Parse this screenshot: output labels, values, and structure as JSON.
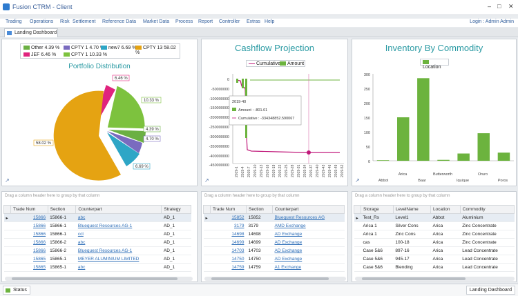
{
  "window": {
    "title": "Fusion CTRM - Client"
  },
  "menu": {
    "items": [
      "Trading",
      "Operations",
      "Risk",
      "Settlement",
      "Reference Data",
      "Market Data",
      "Process",
      "Report",
      "Controller",
      "Extras",
      "Help"
    ],
    "login": "Login : Admin Admin"
  },
  "tabs": {
    "active": "Landing Dashboard"
  },
  "portfolio": {
    "title": "Portfolio Distribution",
    "legend": [
      "Other 4.39 %",
      "CPTY 1 4.70 %",
      "new7 6.69 %",
      "CPTY 13 58.02 %",
      "JEF 6.46 %",
      "CPTY 1 10.33 %"
    ],
    "labels": [
      "6.46 %",
      "10.33 %",
      "4.39 %",
      "4.70 %",
      "6.69 %",
      "58.02 %"
    ]
  },
  "cashflow": {
    "title": "Cashflow Projection",
    "legend": [
      "Cumulative",
      "Amount"
    ],
    "y_ticks": [
      "0",
      "-50000000",
      "-100000000",
      "-150000000",
      "-200000000",
      "-250000000",
      "-300000000",
      "-350000000",
      "-400000000",
      "-450000000"
    ],
    "x_ticks": [
      "2019-1",
      "2019-4",
      "2019-7",
      "2019-10",
      "2019-13",
      "2019-16",
      "2019-19",
      "2019-22",
      "2019-25",
      "2019-28",
      "2019-31",
      "2019-34",
      "2019-37",
      "2019-40",
      "2019-43",
      "2019-46",
      "2019-49",
      "2019-52"
    ],
    "tooltip": {
      "period": "2019-40",
      "amount": "Amount : -801.01",
      "cumulative": "Cumulative : -334348852.590067"
    }
  },
  "inventory": {
    "title": "Inventory By Commodity",
    "legend": "Location",
    "y_ticks": [
      "0",
      "50",
      "100",
      "150",
      "200",
      "250",
      "300"
    ],
    "x_labels_top": [
      "Abbot",
      "Baar",
      "Iquique",
      "Poros"
    ],
    "x_labels_bottom": [
      "Arica",
      "Butterworth",
      "Oruro"
    ]
  },
  "chart_data": [
    {
      "type": "pie",
      "title": "Portfolio Distribution",
      "categories": [
        "Other",
        "CPTY 1",
        "new7",
        "CPTY 13",
        "JEF",
        "CPTY 1"
      ],
      "values": [
        4.39,
        4.7,
        6.69,
        58.02,
        6.46,
        10.33
      ]
    },
    {
      "type": "bar",
      "title": "Inventory By Commodity",
      "categories": [
        "Abbot",
        "Arica",
        "Baar",
        "Butterworth",
        "Iquique",
        "Oruro",
        "Poros"
      ],
      "values": [
        2,
        150,
        285,
        3,
        25,
        95,
        28
      ],
      "ylim": [
        0,
        300
      ],
      "series_name": "Location"
    }
  ],
  "grid_hint": "Drag a column header here to group by that column",
  "grid1": {
    "columns": [
      "Trade Num",
      "Section",
      "Counterpart",
      "Strategy"
    ],
    "rows": [
      [
        "15866",
        "15866-1",
        "abc",
        "AD_1"
      ],
      [
        "15866",
        "15866-1",
        "Bluequest Resources AG-1",
        "AD_1"
      ],
      [
        "15866",
        "15866-1",
        "ccl",
        "AD_1"
      ],
      [
        "15866",
        "15866-2",
        "abc",
        "AD_1"
      ],
      [
        "15866",
        "15866-2",
        "Bluequest Resources AG-1",
        "AD_1"
      ],
      [
        "15865",
        "15865-1",
        "MEYER ALUMINIUM LIMITED",
        "AD_1"
      ],
      [
        "15865",
        "15865-1",
        "abc",
        "AD_1"
      ]
    ]
  },
  "grid2": {
    "columns": [
      "Trade Num",
      "Section",
      "Counterpart"
    ],
    "rows": [
      [
        "15852",
        "15852",
        "Bluequest Resources AG"
      ],
      [
        "3179",
        "3179",
        "AMD Exchange"
      ],
      [
        "14698",
        "14698",
        "AD Exchange"
      ],
      [
        "14699",
        "14699",
        "AD Exchange"
      ],
      [
        "14703",
        "14703",
        "AD Exchange"
      ],
      [
        "14750",
        "14750",
        "AD Exchange"
      ],
      [
        "14759",
        "14759",
        "A1 Exchange"
      ]
    ]
  },
  "grid3": {
    "columns": [
      "Storage",
      "LevelName",
      "Location",
      "Commodity"
    ],
    "rows": [
      [
        "Test_Rs",
        "Level1",
        "Abbot",
        "Aluminium"
      ],
      [
        "Arica 1",
        "Silver Cons",
        "Arica",
        "Zinc Concentrate"
      ],
      [
        "Arica 1",
        "Zinc Cons",
        "Arica",
        "Zinc Concentrate"
      ],
      [
        "cas",
        "100-18",
        "Arica",
        "Zinc Concentrate"
      ],
      [
        "Case 5&6",
        "897-16",
        "Arica",
        "Lead Concentrate"
      ],
      [
        "Case 5&6",
        "945-17",
        "Arica",
        "Lead Concentrate"
      ],
      [
        "Case 5&6",
        "Blending",
        "Arica",
        "Lead Concentrate"
      ]
    ]
  },
  "status": {
    "left": "Status",
    "right": "Landing Dashboard"
  }
}
